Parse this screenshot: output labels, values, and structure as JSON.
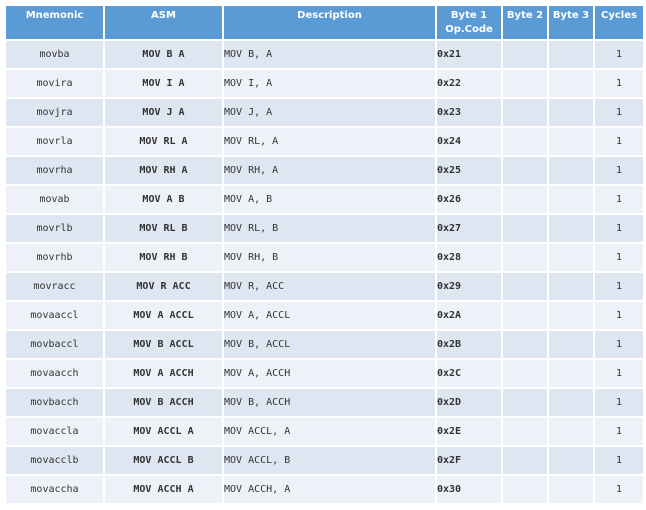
{
  "headers": {
    "mnemonic": "Mnemonic",
    "asm": "ASM",
    "description": "Description",
    "byte1_line1": "Byte 1",
    "byte1_line2": "Op.Code",
    "byte2": "Byte 2",
    "byte3": "Byte 3",
    "cycles": "Cycles"
  },
  "rows": [
    {
      "mnemonic": "movba",
      "asm": "MOV B A",
      "description": "MOV B, A",
      "opcode": "0x21",
      "byte2": "",
      "byte3": "",
      "cycles": "1"
    },
    {
      "mnemonic": "movira",
      "asm": "MOV I A",
      "description": "MOV I, A",
      "opcode": "0x22",
      "byte2": "",
      "byte3": "",
      "cycles": "1"
    },
    {
      "mnemonic": "movjra",
      "asm": "MOV J A",
      "description": "MOV J, A",
      "opcode": "0x23",
      "byte2": "",
      "byte3": "",
      "cycles": "1"
    },
    {
      "mnemonic": "movrla",
      "asm": "MOV RL A",
      "description": "MOV RL, A",
      "opcode": "0x24",
      "byte2": "",
      "byte3": "",
      "cycles": "1"
    },
    {
      "mnemonic": "movrha",
      "asm": "MOV RH A",
      "description": "MOV RH, A",
      "opcode": "0x25",
      "byte2": "",
      "byte3": "",
      "cycles": "1"
    },
    {
      "mnemonic": "movab",
      "asm": "MOV A B",
      "description": "MOV A, B",
      "opcode": "0x26",
      "byte2": "",
      "byte3": "",
      "cycles": "1"
    },
    {
      "mnemonic": "movrlb",
      "asm": "MOV RL B",
      "description": "MOV RL, B",
      "opcode": "0x27",
      "byte2": "",
      "byte3": "",
      "cycles": "1"
    },
    {
      "mnemonic": "movrhb",
      "asm": "MOV RH B",
      "description": "MOV RH, B",
      "opcode": "0x28",
      "byte2": "",
      "byte3": "",
      "cycles": "1"
    },
    {
      "mnemonic": "movracc",
      "asm": "MOV R ACC",
      "description": "MOV R, ACC",
      "opcode": "0x29",
      "byte2": "",
      "byte3": "",
      "cycles": "1"
    },
    {
      "mnemonic": "movaaccl",
      "asm": "MOV A ACCL",
      "description": "MOV A, ACCL",
      "opcode": "0x2A",
      "byte2": "",
      "byte3": "",
      "cycles": "1"
    },
    {
      "mnemonic": "movbaccl",
      "asm": "MOV B ACCL",
      "description": "MOV B, ACCL",
      "opcode": "0x2B",
      "byte2": "",
      "byte3": "",
      "cycles": "1"
    },
    {
      "mnemonic": "movaacch",
      "asm": "MOV A ACCH",
      "description": "MOV A, ACCH",
      "opcode": "0x2C",
      "byte2": "",
      "byte3": "",
      "cycles": "1"
    },
    {
      "mnemonic": "movbacch",
      "asm": "MOV B ACCH",
      "description": "MOV B, ACCH",
      "opcode": "0x2D",
      "byte2": "",
      "byte3": "",
      "cycles": "1"
    },
    {
      "mnemonic": "movaccla",
      "asm": "MOV ACCL A",
      "description": "MOV ACCL, A",
      "opcode": "0x2E",
      "byte2": "",
      "byte3": "",
      "cycles": "1"
    },
    {
      "mnemonic": "movacclb",
      "asm": "MOV ACCL B",
      "description": "MOV ACCL, B",
      "opcode": "0x2F",
      "byte2": "",
      "byte3": "",
      "cycles": "1"
    },
    {
      "mnemonic": "movaccha",
      "asm": "MOV ACCH A",
      "description": "MOV ACCH, A",
      "opcode": "0x30",
      "byte2": "",
      "byte3": "",
      "cycles": "1"
    }
  ],
  "colors": {
    "header_bg": "#5b9bd5",
    "row_odd_bg": "#dee6f1",
    "row_even_bg": "#eef2f8"
  }
}
